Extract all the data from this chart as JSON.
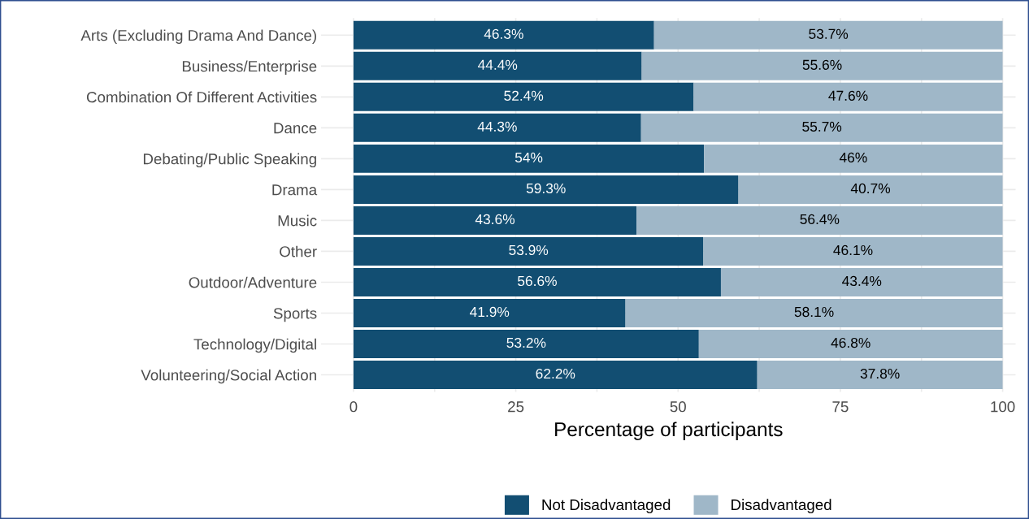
{
  "chart_data": {
    "type": "bar",
    "orientation": "horizontal",
    "stacked": true,
    "xlabel": "Percentage of participants",
    "categories": [
      "Arts (Excluding Drama And Dance)",
      "Business/Enterprise",
      "Combination Of Different Activities",
      "Dance",
      "Debating/Public Speaking",
      "Drama",
      "Music",
      "Other",
      "Outdoor/Adventure",
      "Sports",
      "Technology/Digital",
      "Volunteering/Social Action"
    ],
    "series": [
      {
        "name": "Not Disadvantaged",
        "color": "#124e72",
        "values": [
          46.3,
          44.4,
          52.4,
          44.3,
          54,
          59.3,
          43.6,
          53.9,
          56.6,
          41.9,
          53.2,
          62.2
        ],
        "value_labels": [
          "46.3%",
          "44.4%",
          "52.4%",
          "44.3%",
          "54%",
          "59.3%",
          "43.6%",
          "53.9%",
          "56.6%",
          "41.9%",
          "53.2%",
          "62.2%"
        ]
      },
      {
        "name": "Disadvantaged",
        "color": "#9fb7c8",
        "values": [
          53.7,
          55.6,
          47.6,
          55.7,
          46,
          40.7,
          56.4,
          46.1,
          43.4,
          58.1,
          46.8,
          37.8
        ],
        "value_labels": [
          "53.7%",
          "55.6%",
          "47.6%",
          "55.7%",
          "46%",
          "40.7%",
          "56.4%",
          "46.1%",
          "43.4%",
          "58.1%",
          "46.8%",
          "37.8%"
        ]
      }
    ],
    "xlim": [
      -5,
      102
    ],
    "xticks": [
      0,
      25,
      50,
      75,
      100
    ],
    "grid": true,
    "legend": "bottom"
  }
}
